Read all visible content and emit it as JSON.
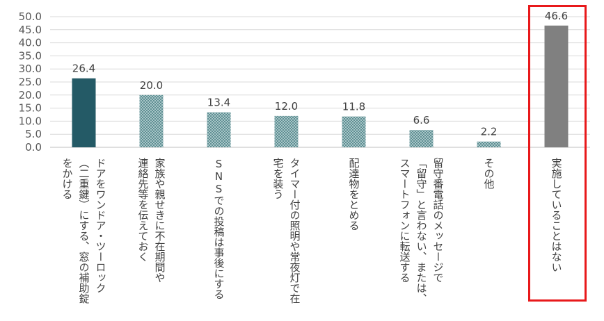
{
  "chart_data": {
    "type": "bar",
    "categories": [
      "ドアをワンドア・ツーロック\n（二重鍵）にする、窓の補助錠\nをかける",
      "家族や親せきに不在期間や\n連絡先等を伝えておく",
      "SNSでの投稿は事後にする",
      "タイマー付の照明や常夜灯で在\n宅を装う",
      "配達物をとめる",
      "留守番電話のメッセージで\n「留守」と言わない、または、\nスマートフォンに転送する",
      "その他",
      "実施していることはない"
    ],
    "values": [
      26.4,
      20.0,
      13.4,
      12.0,
      11.8,
      6.6,
      2.2,
      46.6
    ],
    "value_labels": [
      "26.4",
      "20.0",
      "13.4",
      "12.0",
      "11.8",
      "6.6",
      "2.2",
      "46.6"
    ],
    "bar_styles": [
      "solid",
      "pattern",
      "pattern",
      "pattern",
      "pattern",
      "pattern",
      "pattern",
      "solid"
    ],
    "bar_colors": [
      "#245a66",
      "#7fa9ab",
      "#7fa9ab",
      "#7fa9ab",
      "#7fa9ab",
      "#7fa9ab",
      "#7fa9ab",
      "#808080"
    ],
    "highlighted": "実施していることはない",
    "highlight_color": "#e8191b",
    "ylim": [
      0,
      50
    ],
    "yticks": [
      "0.0",
      "5.0",
      "10.0",
      "15.0",
      "20.0",
      "25.0",
      "30.0",
      "35.0",
      "40.0",
      "45.0",
      "50.0"
    ],
    "ytick_values": [
      0,
      5,
      10,
      15,
      20,
      25,
      30,
      35,
      40,
      45,
      50
    ],
    "grid": true,
    "title": "",
    "xlabel": "",
    "ylabel": ""
  }
}
